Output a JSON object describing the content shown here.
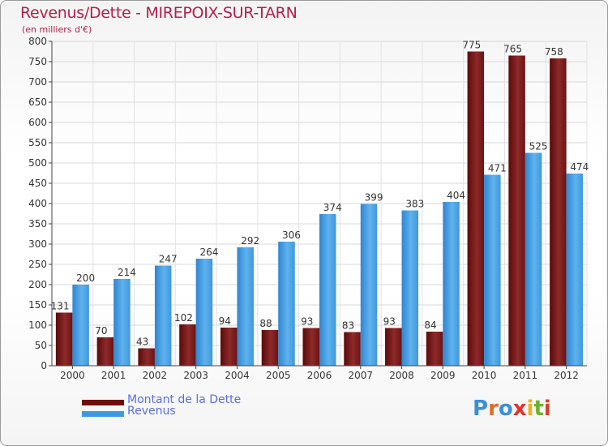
{
  "header": {
    "title": "Revenus/Dette - MIREPOIX-SUR-TARN",
    "subtitle": "(en milliers d'€)"
  },
  "chart_data": {
    "type": "bar",
    "title": "Revenus/Dette - MIREPOIX-SUR-TARN",
    "ylabel": "(en milliers d'€)",
    "xlabel": "",
    "ylim": [
      0,
      800
    ],
    "ytick_step": 50,
    "grid": true,
    "categories": [
      "2000",
      "2001",
      "2002",
      "2003",
      "2004",
      "2005",
      "2006",
      "2007",
      "2008",
      "2009",
      "2010",
      "2011",
      "2012"
    ],
    "series": [
      {
        "name": "Montant de la Dette",
        "color": "#7a1a1a",
        "values": [
          131,
          70,
          43,
          102,
          94,
          88,
          93,
          83,
          93,
          84,
          775,
          765,
          758
        ]
      },
      {
        "name": "Revenus",
        "color": "#4aa3e6",
        "values": [
          200,
          214,
          247,
          264,
          292,
          306,
          374,
          399,
          383,
          404,
          471,
          525,
          474
        ]
      }
    ]
  },
  "legend": {
    "position": "bottom-left",
    "items": [
      {
        "label": "Montant de la Dette",
        "color": "#6e0d0d"
      },
      {
        "label": "Revenus",
        "color": "#3c9ae0"
      }
    ]
  },
  "logo": {
    "text": "Proxiti",
    "letter_colors": [
      "#3b8fd6",
      "#e06a2a",
      "#3b8fd6",
      "#e2322a",
      "#f0b020",
      "#6cb22e",
      "#d8402a"
    ]
  }
}
